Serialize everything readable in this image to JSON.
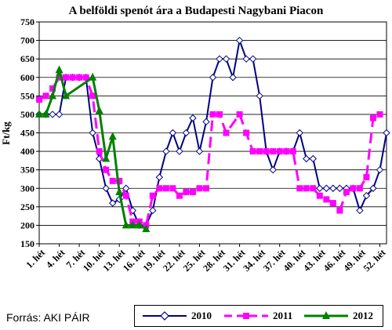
{
  "chart_data": {
    "type": "line",
    "title": "A belföldi spenót ára a Budapesti Nagybani Piacon",
    "ylabel": "Ft/kg",
    "xlabel": "",
    "ylim": [
      150,
      750
    ],
    "yticks": [
      150,
      200,
      250,
      300,
      350,
      400,
      450,
      500,
      550,
      600,
      650,
      700,
      750
    ],
    "xtick_labels": [
      "1. hét",
      "4. hét",
      "7. hét",
      "10. hét",
      "13. hét",
      "16. hét",
      "19. hét",
      "22. hét",
      "25. hét",
      "28. hét",
      "31. hét",
      "34. hét",
      "37. hét",
      "40. hét",
      "43. hét",
      "46. hét",
      "49. hét",
      "52. hét"
    ],
    "x_weeks": [
      1,
      52
    ],
    "grid": true,
    "legend_position": "bottom",
    "series": [
      {
        "name": "2010",
        "color": "#000080",
        "marker": "diamond",
        "dash": "solid",
        "points": [
          [
            1,
            500
          ],
          [
            2,
            500
          ],
          [
            3,
            500
          ],
          [
            4,
            500
          ],
          [
            5,
            600
          ],
          [
            6,
            600
          ],
          [
            7,
            600
          ],
          [
            8,
            600
          ],
          [
            9,
            450
          ],
          [
            10,
            380
          ],
          [
            11,
            300
          ],
          [
            12,
            260
          ],
          [
            13,
            270
          ],
          [
            14,
            300
          ],
          [
            15,
            240
          ],
          [
            16,
            200
          ],
          [
            17,
            200
          ],
          [
            18,
            240
          ],
          [
            19,
            330
          ],
          [
            20,
            400
          ],
          [
            21,
            450
          ],
          [
            22,
            400
          ],
          [
            23,
            450
          ],
          [
            24,
            490
          ],
          [
            25,
            400
          ],
          [
            26,
            480
          ],
          [
            27,
            600
          ],
          [
            28,
            650
          ],
          [
            29,
            650
          ],
          [
            30,
            600
          ],
          [
            31,
            700
          ],
          [
            32,
            650
          ],
          [
            33,
            650
          ],
          [
            34,
            550
          ],
          [
            35,
            400
          ],
          [
            36,
            350
          ],
          [
            37,
            400
          ],
          [
            38,
            400
          ],
          [
            39,
            400
          ],
          [
            40,
            450
          ],
          [
            41,
            380
          ],
          [
            42,
            380
          ],
          [
            43,
            300
          ],
          [
            44,
            300
          ],
          [
            45,
            300
          ],
          [
            46,
            300
          ],
          [
            47,
            300
          ],
          [
            48,
            300
          ],
          [
            49,
            240
          ],
          [
            50,
            280
          ],
          [
            51,
            300
          ],
          [
            52,
            350
          ],
          [
            53,
            450
          ]
        ]
      },
      {
        "name": "2011",
        "color": "#ff00ff",
        "marker": "square",
        "dash": "dashed",
        "points": [
          [
            1,
            540
          ],
          [
            2,
            550
          ],
          [
            3,
            570
          ],
          [
            4,
            600
          ],
          [
            5,
            600
          ],
          [
            6,
            600
          ],
          [
            7,
            600
          ],
          [
            8,
            600
          ],
          [
            9,
            550
          ],
          [
            10,
            400
          ],
          [
            11,
            350
          ],
          [
            12,
            320
          ],
          [
            13,
            320
          ],
          [
            14,
            280
          ],
          [
            15,
            210
          ],
          [
            16,
            210
          ],
          [
            17,
            200
          ],
          [
            18,
            280
          ],
          [
            19,
            300
          ],
          [
            20,
            300
          ],
          [
            21,
            300
          ],
          [
            22,
            280
          ],
          [
            23,
            290
          ],
          [
            24,
            290
          ],
          [
            25,
            300
          ],
          [
            26,
            300
          ],
          [
            27,
            500
          ],
          [
            28,
            500
          ],
          [
            29,
            450
          ],
          [
            31,
            500
          ],
          [
            32,
            450
          ],
          [
            33,
            400
          ],
          [
            34,
            400
          ],
          [
            35,
            400
          ],
          [
            36,
            400
          ],
          [
            37,
            400
          ],
          [
            38,
            400
          ],
          [
            39,
            400
          ],
          [
            40,
            300
          ],
          [
            41,
            300
          ],
          [
            42,
            300
          ],
          [
            43,
            280
          ],
          [
            44,
            270
          ],
          [
            45,
            260
          ],
          [
            46,
            240
          ],
          [
            47,
            290
          ],
          [
            48,
            300
          ],
          [
            49,
            300
          ],
          [
            50,
            330
          ],
          [
            51,
            490
          ],
          [
            52,
            500
          ]
        ]
      },
      {
        "name": "2012",
        "color": "#008000",
        "marker": "triangle",
        "dash": "solid",
        "points": [
          [
            1,
            500
          ],
          [
            2,
            500
          ],
          [
            3,
            550
          ],
          [
            4,
            620
          ],
          [
            5,
            550
          ],
          [
            9,
            600
          ],
          [
            10,
            510
          ],
          [
            11,
            380
          ],
          [
            12,
            440
          ],
          [
            13,
            290
          ],
          [
            14,
            200
          ],
          [
            15,
            200
          ],
          [
            16,
            200
          ],
          [
            17,
            190
          ]
        ]
      }
    ]
  },
  "source_note": "Forrás: AKI PÁIR"
}
